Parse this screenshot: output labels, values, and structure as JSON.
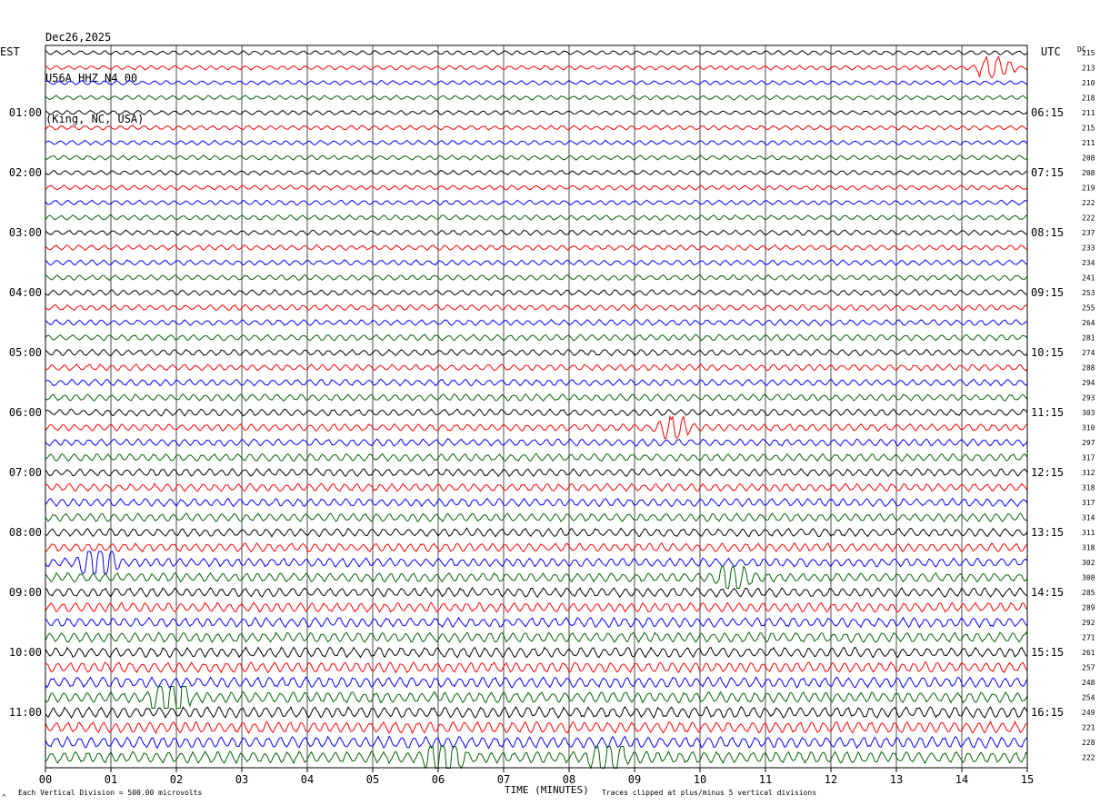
{
  "header": {
    "date": "Dec26,2025",
    "station": "U56A HHZ N4 00",
    "location": "(King, NC, USA)"
  },
  "axes": {
    "left_timezone": "EST",
    "right_timezone": "UTC",
    "dc_label": "DC",
    "xlabel": "TIME (MINUTES)",
    "footer_left": "Each Vertical Division =  500.00 microvolts",
    "footer_right": "Traces clipped at plus/minus 5 vertical divisions",
    "corner_mark": "^"
  },
  "chart_data": {
    "type": "line",
    "title": "Dec26,2025 U56A HHZ N4 00 (King, NC, USA)",
    "xlabel": "TIME (MINUTES)",
    "xlim": [
      0,
      15
    ],
    "x_ticks": [
      "00",
      "01",
      "02",
      "03",
      "04",
      "05",
      "06",
      "07",
      "08",
      "09",
      "10",
      "11",
      "12",
      "13",
      "14",
      "15"
    ],
    "trace_colors": [
      "#000000",
      "#ff0000",
      "#0000ff",
      "#006400"
    ],
    "left_hour_labels": [
      "01:00",
      "02:00",
      "03:00",
      "04:00",
      "05:00",
      "06:00",
      "07:00",
      "08:00",
      "09:00",
      "10:00",
      "11:00"
    ],
    "right_hour_labels": [
      "06:15",
      "07:15",
      "08:15",
      "09:15",
      "10:15",
      "11:15",
      "12:15",
      "13:15",
      "14:15",
      "15:15",
      "16:15"
    ],
    "dc_values": [
      "215",
      "213",
      "210",
      "218",
      "211",
      "215",
      "211",
      "208",
      "208",
      "219",
      "222",
      "222",
      "237",
      "233",
      "234",
      "241",
      "253",
      "255",
      "264",
      "281",
      "274",
      "288",
      "294",
      "293",
      "303",
      "310",
      "297",
      "317",
      "312",
      "318",
      "317",
      "314",
      "311",
      "318",
      "302",
      "308",
      "285",
      "289",
      "292",
      "271",
      "261",
      "257",
      "248",
      "254",
      "249",
      "221",
      "228",
      "222"
    ],
    "events": [
      {
        "trace": 1,
        "minute": 14.5,
        "amplitude": "high"
      },
      {
        "trace": 25,
        "minute": 9.6,
        "amplitude": "medium"
      },
      {
        "trace": 34,
        "minute": 0.8,
        "amplitude": "high"
      },
      {
        "trace": 35,
        "minute": 10.5,
        "amplitude": "medium"
      },
      {
        "trace": 43,
        "minute": 1.9,
        "amplitude": "high"
      },
      {
        "trace": 47,
        "minute": 6.1,
        "amplitude": "high"
      },
      {
        "trace": 47,
        "minute": 8.6,
        "amplitude": "medium"
      }
    ]
  }
}
